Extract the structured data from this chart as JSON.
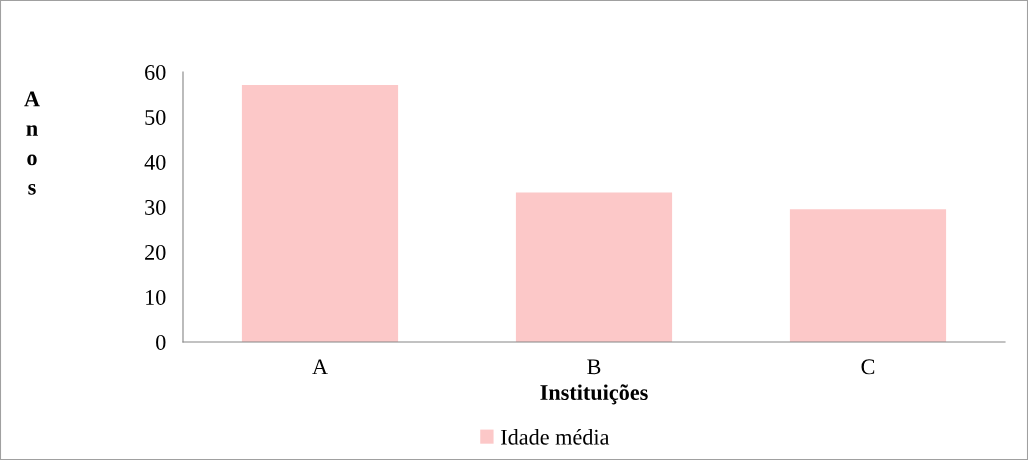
{
  "chart_data": {
    "type": "bar",
    "xlabel": "Instituições",
    "ylabel": "Anos",
    "categories": [
      "A",
      "B",
      "C"
    ],
    "series": [
      {
        "name": "Idade média",
        "color": "#fcc8c8",
        "values": [
          57.1,
          33.2,
          29.5
        ]
      }
    ],
    "ylim": [
      0,
      60
    ],
    "yticks": [
      0,
      10,
      20,
      30,
      40,
      50,
      60
    ],
    "grid": false,
    "legend": "bottom"
  }
}
